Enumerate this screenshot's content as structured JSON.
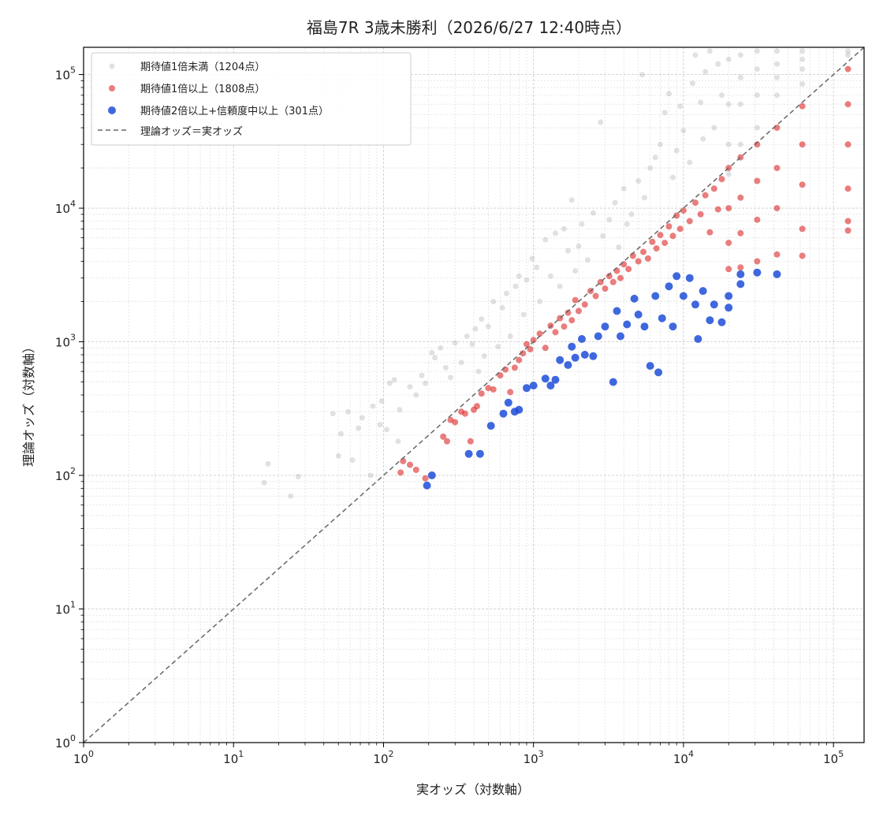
{
  "chart_data": {
    "type": "scatter",
    "title": "福島7R 3歳未勝利（2026/6/27 12:40時点）",
    "xlabel": "実オッズ（対数軸）",
    "ylabel": "理論オッズ（対数軸）",
    "xscale": "log",
    "yscale": "log",
    "xlim": [
      1,
      160000
    ],
    "ylim": [
      1,
      160000
    ],
    "grid": true,
    "legend": "top-left",
    "x_ticks": [
      {
        "base": "10",
        "exp": "0"
      },
      {
        "base": "10",
        "exp": "1"
      },
      {
        "base": "10",
        "exp": "2"
      },
      {
        "base": "10",
        "exp": "3"
      },
      {
        "base": "10",
        "exp": "4"
      },
      {
        "base": "10",
        "exp": "5"
      }
    ],
    "y_ticks": [
      {
        "base": "10",
        "exp": "0"
      },
      {
        "base": "10",
        "exp": "1"
      },
      {
        "base": "10",
        "exp": "2"
      },
      {
        "base": "10",
        "exp": "3"
      },
      {
        "base": "10",
        "exp": "4"
      },
      {
        "base": "10",
        "exp": "5"
      }
    ],
    "reference_line": {
      "name": "理論オッズ＝実オッズ",
      "color": "#666666"
    },
    "series": [
      {
        "name": "期待値1倍未満（1204点）",
        "color": "#a3a8b0",
        "points": [
          [
            16,
            88
          ],
          [
            17,
            122
          ],
          [
            24,
            70
          ],
          [
            27,
            98
          ],
          [
            46,
            290
          ],
          [
            50,
            140
          ],
          [
            52,
            205
          ],
          [
            58,
            300
          ],
          [
            62,
            130
          ],
          [
            68,
            225
          ],
          [
            72,
            270
          ],
          [
            82,
            100
          ],
          [
            85,
            330
          ],
          [
            95,
            240
          ],
          [
            97,
            360
          ],
          [
            105,
            220
          ],
          [
            110,
            490
          ],
          [
            118,
            520
          ],
          [
            125,
            180
          ],
          [
            128,
            310
          ],
          [
            150,
            460
          ],
          [
            165,
            400
          ],
          [
            180,
            560
          ],
          [
            190,
            490
          ],
          [
            210,
            830
          ],
          [
            220,
            760
          ],
          [
            240,
            900
          ],
          [
            260,
            640
          ],
          [
            280,
            540
          ],
          [
            300,
            980
          ],
          [
            330,
            700
          ],
          [
            360,
            1100
          ],
          [
            390,
            960
          ],
          [
            410,
            1250
          ],
          [
            430,
            600
          ],
          [
            450,
            1480
          ],
          [
            470,
            780
          ],
          [
            500,
            1300
          ],
          [
            540,
            2000
          ],
          [
            580,
            920
          ],
          [
            620,
            1800
          ],
          [
            660,
            2300
          ],
          [
            700,
            1100
          ],
          [
            760,
            2600
          ],
          [
            800,
            3100
          ],
          [
            860,
            1600
          ],
          [
            900,
            2900
          ],
          [
            980,
            4200
          ],
          [
            1050,
            3600
          ],
          [
            1100,
            2000
          ],
          [
            1200,
            5800
          ],
          [
            1300,
            3100
          ],
          [
            1400,
            6500
          ],
          [
            1500,
            2600
          ],
          [
            1600,
            7000
          ],
          [
            1700,
            4800
          ],
          [
            1800,
            11500
          ],
          [
            1900,
            3400
          ],
          [
            2000,
            5200
          ],
          [
            2100,
            7600
          ],
          [
            2300,
            4100
          ],
          [
            2500,
            9200
          ],
          [
            2800,
            44000
          ],
          [
            2900,
            6200
          ],
          [
            3200,
            8200
          ],
          [
            3500,
            11000
          ],
          [
            3700,
            5100
          ],
          [
            4000,
            14000
          ],
          [
            4200,
            7600
          ],
          [
            4500,
            9000
          ],
          [
            5000,
            16000
          ],
          [
            5300,
            100000
          ],
          [
            5500,
            12000
          ],
          [
            6000,
            20000
          ],
          [
            6500,
            24000
          ],
          [
            7000,
            30000
          ],
          [
            7500,
            52000
          ],
          [
            8000,
            72000
          ],
          [
            8500,
            17000
          ],
          [
            9000,
            27000
          ],
          [
            9500,
            58000
          ],
          [
            10000,
            38000
          ],
          [
            11000,
            22000
          ],
          [
            11500,
            86000
          ],
          [
            12000,
            140000
          ],
          [
            13000,
            62000
          ],
          [
            13500,
            33000
          ],
          [
            14000,
            105000
          ],
          [
            15000,
            150000
          ],
          [
            16000,
            40000
          ],
          [
            17000,
            120000
          ],
          [
            18000,
            70000
          ],
          [
            20000,
            130000
          ],
          [
            20000,
            60000
          ],
          [
            20000,
            30000
          ],
          [
            20000,
            18000
          ],
          [
            24000,
            140000
          ],
          [
            24000,
            95000
          ],
          [
            24000,
            60000
          ],
          [
            24000,
            30000
          ],
          [
            31000,
            150000
          ],
          [
            31000,
            110000
          ],
          [
            31000,
            70000
          ],
          [
            31000,
            40000
          ],
          [
            42000,
            150000
          ],
          [
            42000,
            120000
          ],
          [
            42000,
            95000
          ],
          [
            42000,
            70000
          ],
          [
            62000,
            150000
          ],
          [
            62000,
            130000
          ],
          [
            62000,
            110000
          ],
          [
            62000,
            85000
          ],
          [
            125000,
            150000
          ],
          [
            125000,
            140000
          ]
        ]
      },
      {
        "name": "期待値1倍以上（1808点）",
        "color": "#dc2626",
        "points": [
          [
            130,
            105
          ],
          [
            135,
            128
          ],
          [
            150,
            120
          ],
          [
            165,
            110
          ],
          [
            190,
            95
          ],
          [
            250,
            195
          ],
          [
            265,
            180
          ],
          [
            280,
            260
          ],
          [
            300,
            250
          ],
          [
            330,
            300
          ],
          [
            350,
            290
          ],
          [
            380,
            180
          ],
          [
            400,
            310
          ],
          [
            420,
            330
          ],
          [
            450,
            410
          ],
          [
            500,
            450
          ],
          [
            540,
            440
          ],
          [
            600,
            560
          ],
          [
            650,
            620
          ],
          [
            700,
            420
          ],
          [
            750,
            640
          ],
          [
            800,
            730
          ],
          [
            850,
            820
          ],
          [
            900,
            960
          ],
          [
            950,
            880
          ],
          [
            1000,
            1030
          ],
          [
            1100,
            1150
          ],
          [
            1200,
            900
          ],
          [
            1300,
            1320
          ],
          [
            1400,
            1180
          ],
          [
            1500,
            1500
          ],
          [
            1600,
            1300
          ],
          [
            1700,
            1650
          ],
          [
            1800,
            1450
          ],
          [
            1900,
            2050
          ],
          [
            2000,
            1700
          ],
          [
            2200,
            1900
          ],
          [
            2400,
            2400
          ],
          [
            2600,
            2200
          ],
          [
            2800,
            2800
          ],
          [
            3000,
            2500
          ],
          [
            3200,
            3100
          ],
          [
            3400,
            2800
          ],
          [
            3600,
            3400
          ],
          [
            3800,
            3000
          ],
          [
            4000,
            3800
          ],
          [
            4300,
            3500
          ],
          [
            4600,
            4400
          ],
          [
            5000,
            4000
          ],
          [
            5400,
            4700
          ],
          [
            5800,
            4200
          ],
          [
            6200,
            5600
          ],
          [
            6600,
            5000
          ],
          [
            7000,
            6300
          ],
          [
            7500,
            5500
          ],
          [
            8000,
            7300
          ],
          [
            8500,
            6200
          ],
          [
            9000,
            8800
          ],
          [
            9500,
            7000
          ],
          [
            10000,
            9600
          ],
          [
            11000,
            8000
          ],
          [
            12000,
            11000
          ],
          [
            13000,
            9000
          ],
          [
            14000,
            12500
          ],
          [
            15000,
            6600
          ],
          [
            16000,
            14000
          ],
          [
            17000,
            9800
          ],
          [
            18000,
            16500
          ],
          [
            20000,
            20000
          ],
          [
            20000,
            10000
          ],
          [
            20000,
            5500
          ],
          [
            20000,
            3500
          ],
          [
            24000,
            24000
          ],
          [
            24000,
            12000
          ],
          [
            24000,
            6500
          ],
          [
            24000,
            3600
          ],
          [
            31000,
            30000
          ],
          [
            31000,
            16000
          ],
          [
            31000,
            8200
          ],
          [
            31000,
            4000
          ],
          [
            42000,
            40000
          ],
          [
            42000,
            20000
          ],
          [
            42000,
            10000
          ],
          [
            42000,
            4500
          ],
          [
            62000,
            58000
          ],
          [
            62000,
            30000
          ],
          [
            62000,
            15000
          ],
          [
            62000,
            7000
          ],
          [
            62000,
            4400
          ],
          [
            125000,
            110000
          ],
          [
            125000,
            60000
          ],
          [
            125000,
            30000
          ],
          [
            125000,
            14000
          ],
          [
            125000,
            8000
          ],
          [
            125000,
            6800
          ]
        ]
      },
      {
        "name": "期待値2倍以上+信頼度中以上（301点）",
        "color": "#1d4ed8",
        "points": [
          [
            195,
            84
          ],
          [
            210,
            100
          ],
          [
            370,
            145
          ],
          [
            440,
            145
          ],
          [
            520,
            235
          ],
          [
            630,
            290
          ],
          [
            680,
            350
          ],
          [
            750,
            300
          ],
          [
            800,
            310
          ],
          [
            900,
            450
          ],
          [
            1000,
            470
          ],
          [
            1200,
            530
          ],
          [
            1300,
            470
          ],
          [
            1400,
            520
          ],
          [
            1500,
            730
          ],
          [
            1700,
            670
          ],
          [
            1800,
            920
          ],
          [
            1900,
            760
          ],
          [
            2100,
            1050
          ],
          [
            2200,
            800
          ],
          [
            2500,
            780
          ],
          [
            2700,
            1100
          ],
          [
            3000,
            1300
          ],
          [
            3400,
            500
          ],
          [
            3600,
            1700
          ],
          [
            3800,
            1100
          ],
          [
            4200,
            1350
          ],
          [
            4700,
            2100
          ],
          [
            5000,
            1600
          ],
          [
            5500,
            1300
          ],
          [
            6000,
            660
          ],
          [
            6500,
            2200
          ],
          [
            6800,
            590
          ],
          [
            7200,
            1500
          ],
          [
            8000,
            2600
          ],
          [
            8500,
            1300
          ],
          [
            9000,
            3100
          ],
          [
            10000,
            2200
          ],
          [
            11000,
            3000
          ],
          [
            12000,
            1900
          ],
          [
            12500,
            1050
          ],
          [
            13500,
            2400
          ],
          [
            15000,
            1450
          ],
          [
            16000,
            1900
          ],
          [
            18000,
            1400
          ],
          [
            20000,
            2200
          ],
          [
            20000,
            1800
          ],
          [
            24000,
            3200
          ],
          [
            24000,
            2700
          ],
          [
            31000,
            3300
          ],
          [
            42000,
            3200
          ]
        ]
      }
    ]
  }
}
